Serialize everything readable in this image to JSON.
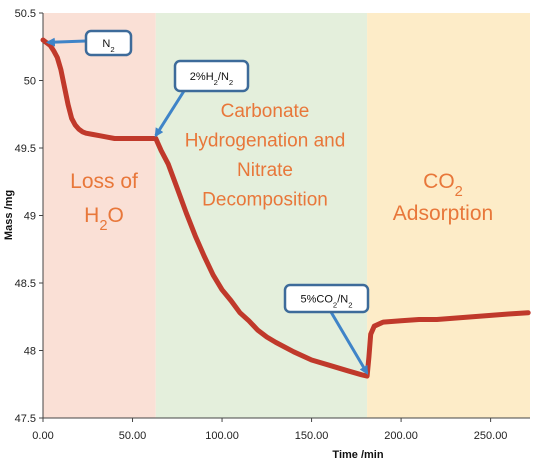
{
  "chart_data": {
    "type": "line",
    "xlabel": "Time /min",
    "ylabel": "Mass /mg",
    "xlim": [
      0,
      272
    ],
    "ylim": [
      47.5,
      50.5
    ],
    "x_ticks": [
      "0.00",
      "50.00",
      "100.00",
      "150.00",
      "200.00",
      "250.00"
    ],
    "y_ticks": [
      "47.5",
      "48",
      "48.5",
      "49",
      "49.5",
      "50",
      "50.5"
    ],
    "grid": false,
    "colors": {
      "line": "#c0392b",
      "water_region": "#fae0d6",
      "decomposition_region": "#e4efdc",
      "adsorption_region": "#fdecc8",
      "region_text": "#e8773a",
      "callout_border": "#3d6b9a",
      "arrow": "#3f84c8"
    },
    "regions": [
      {
        "key": "water",
        "x_start": 0,
        "x_end": 63,
        "lines": [
          "Loss of",
          "H₂O"
        ]
      },
      {
        "key": "decomposition",
        "x_start": 63,
        "x_end": 181,
        "lines": [
          "Carbonate",
          "Hydrogenation and",
          "Nitrate",
          "Decomposition"
        ]
      },
      {
        "key": "adsorption",
        "x_start": 181,
        "x_end": 272,
        "lines": [
          "CO₂",
          "Adsorption"
        ]
      }
    ],
    "annotations": [
      {
        "text": "N₂",
        "target": [
          0.5,
          50.29
        ]
      },
      {
        "text": "2%H₂/N₂",
        "target": [
          63,
          49.57
        ]
      },
      {
        "text": "5%CO₂/N₂",
        "target": [
          181,
          47.81
        ]
      }
    ],
    "series": [
      {
        "x": [
          0,
          2,
          4,
          6,
          8,
          10,
          12,
          14,
          16,
          18,
          20,
          22,
          24,
          28,
          32,
          36,
          40,
          45,
          50,
          55,
          60,
          63,
          64,
          66,
          70,
          75,
          80,
          85,
          90,
          95,
          100,
          105,
          110,
          115,
          120,
          125,
          130,
          140,
          150,
          160,
          170,
          178,
          181,
          182,
          183,
          185,
          190,
          200,
          210,
          220,
          230,
          240,
          250,
          260,
          271
        ],
        "y": [
          50.3,
          50.28,
          50.26,
          50.22,
          50.17,
          50.08,
          49.95,
          49.82,
          49.72,
          49.67,
          49.64,
          49.62,
          49.61,
          49.6,
          49.59,
          49.58,
          49.57,
          49.57,
          49.57,
          49.57,
          49.57,
          49.57,
          49.54,
          49.48,
          49.38,
          49.2,
          49.02,
          48.85,
          48.7,
          48.56,
          48.45,
          48.37,
          48.28,
          48.22,
          48.15,
          48.1,
          48.06,
          47.99,
          47.93,
          47.89,
          47.85,
          47.82,
          47.81,
          47.95,
          48.12,
          48.18,
          48.21,
          48.22,
          48.23,
          48.23,
          48.24,
          48.25,
          48.26,
          48.27,
          48.28
        ]
      }
    ]
  }
}
